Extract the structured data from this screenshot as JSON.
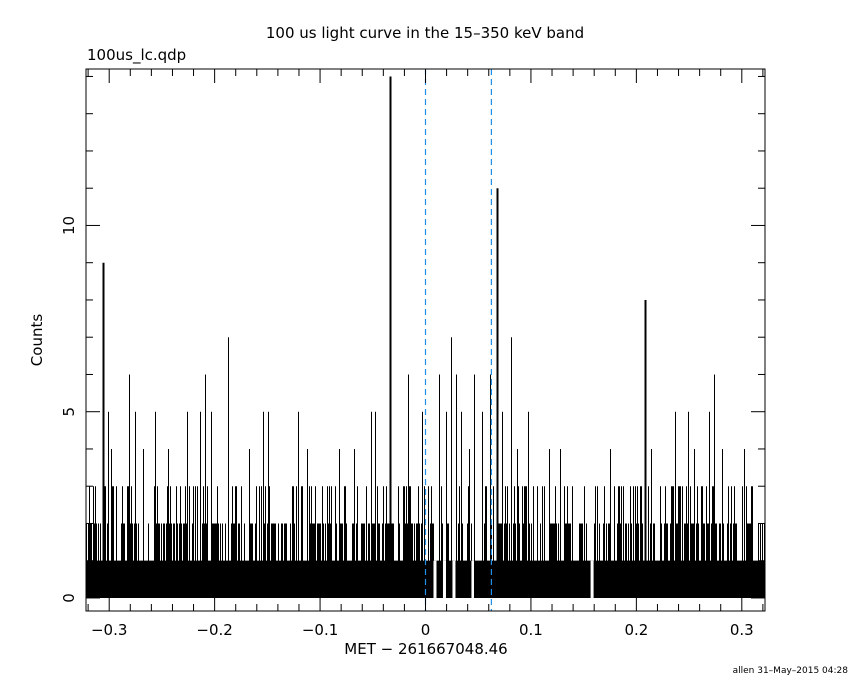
{
  "title": "100 us light curve in the 15–350 keV band",
  "filename": "100us_lc.qdp",
  "footer": "allen 31–May–2015 04:28",
  "chart_data": {
    "type": "histogram",
    "title": "100 us light curve in the 15–350 keV band",
    "xlabel": "MET − 261667048.46",
    "ylabel": "Counts",
    "xlim": [
      -0.322,
      0.322
    ],
    "ylim": [
      -0.35,
      14.2
    ],
    "x_ticks": [
      {
        "value": -0.3,
        "label": "−0.3"
      },
      {
        "value": -0.2,
        "label": "−0.2"
      },
      {
        "value": -0.1,
        "label": "−0.1"
      },
      {
        "value": 0,
        "label": "0"
      },
      {
        "value": 0.1,
        "label": "0.1"
      },
      {
        "value": 0.2,
        "label": "0.2"
      },
      {
        "value": 0.3,
        "label": "0.3"
      }
    ],
    "y_ticks": [
      {
        "value": 0,
        "label": "0"
      },
      {
        "value": 5,
        "label": "5"
      },
      {
        "value": 10,
        "label": "10"
      }
    ],
    "bin_width": 0.0001,
    "background_counts_range": [
      0,
      3
    ],
    "notable_spikes": [
      {
        "x": -0.306,
        "y": 9
      },
      {
        "x": -0.301,
        "y": 5
      },
      {
        "x": -0.298,
        "y": 4
      },
      {
        "x": -0.281,
        "y": 6
      },
      {
        "x": -0.276,
        "y": 5
      },
      {
        "x": -0.268,
        "y": 4
      },
      {
        "x": -0.257,
        "y": 5
      },
      {
        "x": -0.244,
        "y": 4
      },
      {
        "x": -0.226,
        "y": 5
      },
      {
        "x": -0.214,
        "y": 5
      },
      {
        "x": -0.209,
        "y": 6
      },
      {
        "x": -0.203,
        "y": 5
      },
      {
        "x": -0.187,
        "y": 7
      },
      {
        "x": -0.167,
        "y": 4
      },
      {
        "x": -0.154,
        "y": 5
      },
      {
        "x": -0.149,
        "y": 5
      },
      {
        "x": -0.121,
        "y": 5
      },
      {
        "x": -0.112,
        "y": 4
      },
      {
        "x": -0.082,
        "y": 4
      },
      {
        "x": -0.068,
        "y": 4
      },
      {
        "x": -0.052,
        "y": 5
      },
      {
        "x": -0.048,
        "y": 5
      },
      {
        "x": -0.034,
        "y": 14
      },
      {
        "x": -0.017,
        "y": 6
      },
      {
        "x": -0.003,
        "y": 5
      },
      {
        "x": 0.013,
        "y": 6
      },
      {
        "x": 0.019,
        "y": 5
      },
      {
        "x": 0.024,
        "y": 7
      },
      {
        "x": 0.029,
        "y": 6
      },
      {
        "x": 0.034,
        "y": 5
      },
      {
        "x": 0.041,
        "y": 4
      },
      {
        "x": 0.046,
        "y": 6
      },
      {
        "x": 0.054,
        "y": 5
      },
      {
        "x": 0.061,
        "y": 6
      },
      {
        "x": 0.068,
        "y": 11
      },
      {
        "x": 0.073,
        "y": 5
      },
      {
        "x": 0.081,
        "y": 7
      },
      {
        "x": 0.087,
        "y": 4
      },
      {
        "x": 0.097,
        "y": 5
      },
      {
        "x": 0.117,
        "y": 4
      },
      {
        "x": 0.128,
        "y": 4
      },
      {
        "x": 0.175,
        "y": 4
      },
      {
        "x": 0.208,
        "y": 8
      },
      {
        "x": 0.214,
        "y": 4
      },
      {
        "x": 0.237,
        "y": 5
      },
      {
        "x": 0.249,
        "y": 5
      },
      {
        "x": 0.255,
        "y": 4
      },
      {
        "x": 0.269,
        "y": 5
      },
      {
        "x": 0.274,
        "y": 6
      },
      {
        "x": 0.281,
        "y": 4
      },
      {
        "x": 0.302,
        "y": 4
      }
    ],
    "zero_gaps": [
      0.009,
      0.018,
      0.027,
      0.045,
      0.158
    ],
    "vertical_lines": [
      {
        "x": 0.0,
        "style": "dashed",
        "color": "#1f8fe8"
      },
      {
        "x": 0.0625,
        "style": "dashed",
        "color": "#1f8fe8"
      }
    ],
    "grid": false,
    "legend": "none",
    "line_color": "#000000"
  }
}
